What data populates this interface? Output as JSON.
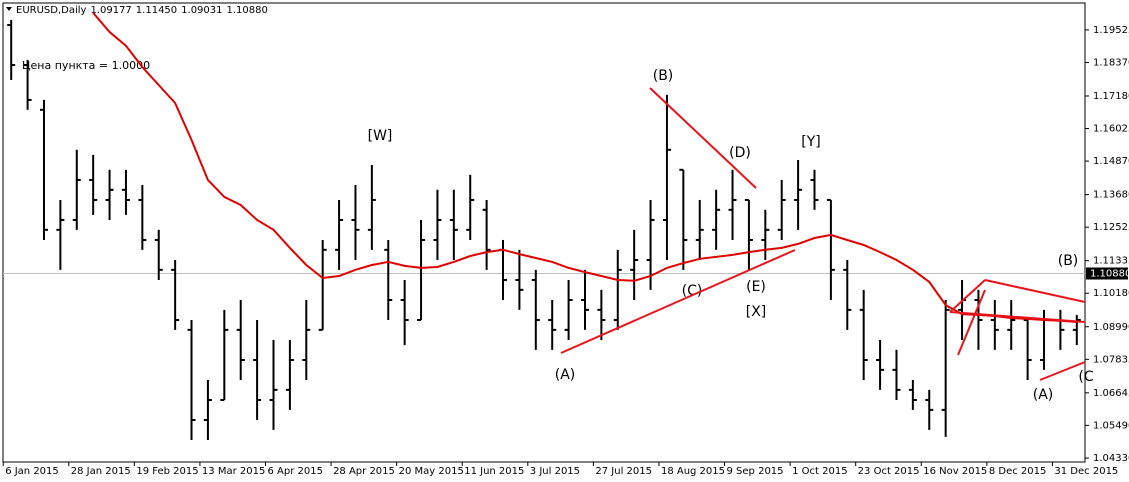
{
  "header": {
    "symbol": "EURUSD,Daily",
    "ohlc": [
      1.09177,
      {
        "value": 1.1145,
        "label": "1.11450"
      },
      1.09031,
      {
        "value": 1.1088,
        "label": "1.10880"
      }
    ],
    "info_text": "Цена пункта = 1.0000"
  },
  "chart_data": {
    "type": "ohlc",
    "color": "#000000",
    "open": [
      1.197,
      1.1828,
      1.1669,
      1.1243,
      1.1278,
      1.142,
      1.1349,
      1.1385,
      1.1349,
      1.1207,
      1.1101,
      1.0888,
      1.0568,
      1.0639,
      1.0888,
      1.0781,
      1.0639,
      1.0675,
      1.0781,
      1.0888,
      1.1172,
      1.1278,
      1.1243,
      1.1172,
      1.0994,
      1.0923,
      1.1207,
      1.1278,
      1.1243,
      1.1314,
      1.1172,
      1.1065,
      1.1065,
      1.0923,
      1.0888,
      1.0994,
      1.0959,
      1.0923,
      1.1101,
      1.1136,
      1.1278,
      1.1456,
      1.1207,
      1.1243,
      1.1314,
      1.1349,
      1.1207,
      1.1243,
      1.1349,
      1.142,
      1.1349,
      1.1101,
      1.0959,
      1.0781,
      1.0746,
      1.0675,
      1.0639,
      1.0604,
      1.0959,
      1.0994,
      1.0923,
      1.0888,
      1.0923,
      1.0781,
      1.0923,
      1.0888
    ],
    "high": [
      1.1988,
      1.1846,
      1.1704,
      1.1349,
      1.1527,
      1.1509,
      1.1456,
      1.1456,
      1.1402,
      1.1243,
      1.1136,
      1.0923,
      1.071,
      1.0959,
      1.0994,
      1.0923,
      1.0852,
      1.0852,
      1.0994,
      1.1207,
      1.1349,
      1.1402,
      1.1473,
      1.1207,
      1.1065,
      1.1278,
      1.1385,
      1.1385,
      1.1438,
      1.1349,
      1.1207,
      1.1172,
      1.1101,
      1.0994,
      1.1065,
      1.1101,
      1.103,
      1.1172,
      1.1243,
      1.1349,
      1.1722,
      1.1456,
      1.1349,
      1.1385,
      1.1456,
      1.1349,
      1.1314,
      1.142,
      1.1491,
      1.1456,
      1.1349,
      1.1136,
      1.103,
      1.0852,
      1.0817,
      1.071,
      1.0675,
      1.0994,
      1.1065,
      1.103,
      1.0994,
      1.0994,
      1.0923,
      1.0959,
      1.0959,
      1.0941
    ],
    "low": [
      1.1775,
      1.1669,
      1.1207,
      1.1101,
      1.1243,
      1.1296,
      1.1278,
      1.1296,
      1.1172,
      1.1065,
      1.0888,
      1.0497,
      1.0497,
      1.0639,
      1.071,
      1.0568,
      1.0533,
      1.0604,
      1.071,
      1.0888,
      1.1101,
      1.1136,
      1.1172,
      1.0923,
      1.0834,
      1.0923,
      1.1136,
      1.1136,
      1.1207,
      1.1101,
      1.0994,
      1.0959,
      1.0817,
      1.0817,
      1.0852,
      1.0888,
      1.0852,
      1.0888,
      1.0994,
      1.103,
      1.1136,
      1.1101,
      1.1136,
      1.1172,
      1.1207,
      1.1101,
      1.1136,
      1.1207,
      1.1243,
      1.1314,
      1.0994,
      1.0888,
      1.071,
      1.0675,
      1.0639,
      1.0604,
      1.0533,
      1.0508,
      1.0852,
      1.0817,
      1.0817,
      1.0817,
      1.071,
      1.0746,
      1.0817,
      1.0834
    ],
    "close": [
      1.1828,
      1.1704,
      1.1243,
      1.1278,
      1.142,
      1.1349,
      1.1385,
      1.1349,
      1.1207,
      1.1101,
      1.0923,
      1.0568,
      1.0639,
      1.0888,
      1.0781,
      1.0639,
      1.0675,
      1.0781,
      1.0888,
      1.1172,
      1.1278,
      1.1243,
      1.1349,
      1.0994,
      1.0923,
      1.1207,
      1.1278,
      1.1243,
      1.1349,
      1.1172,
      1.1065,
      1.103,
      1.0923,
      1.0888,
      1.0994,
      1.0959,
      1.0923,
      1.1101,
      1.1136,
      1.1278,
      1.1527,
      1.1207,
      1.1243,
      1.1314,
      1.1349,
      1.1207,
      1.1243,
      1.1349,
      1.1385,
      1.1349,
      1.1101,
      1.0959,
      1.0781,
      1.0746,
      1.0675,
      1.0639,
      1.0604,
      1.0959,
      1.0994,
      1.0923,
      1.0888,
      1.0923,
      1.0781,
      1.0923,
      1.0888,
      1.0923
    ],
    "moving_average": {
      "color": "#e00000",
      "values": [
        null,
        null,
        null,
        null,
        null,
        1.2013,
        1.1945,
        1.1896,
        1.1821,
        1.1757,
        1.1693,
        1.1562,
        1.142,
        1.136,
        1.1331,
        1.1278,
        1.1243,
        1.1179,
        1.1118,
        1.1072,
        1.1079,
        1.1101,
        1.1118,
        1.1129,
        1.1115,
        1.1108,
        1.1111,
        1.1129,
        1.115,
        1.1164,
        1.1172,
        1.1157,
        1.1143,
        1.1129,
        1.1108,
        1.1093,
        1.1079,
        1.1065,
        1.1062,
        1.1079,
        1.1108,
        1.1125,
        1.114,
        1.1147,
        1.1154,
        1.1164,
        1.1172,
        1.1179,
        1.1193,
        1.1214,
        1.1225,
        1.1207,
        1.1189,
        1.1164,
        1.1136,
        1.1101,
        1.1058,
        1.0976,
        1.0944,
        1.0941,
        1.0937,
        1.093,
        1.0927,
        1.0923,
        1.092,
        1.0916
      ]
    },
    "xlim": [
      -0.5,
      65.5
    ],
    "xticks": [
      {
        "value": 0,
        "label": "6 Jan 2015"
      },
      {
        "value": 4,
        "label": "28 Jan 2015"
      },
      {
        "value": 8,
        "label": "19 Feb 2015"
      },
      {
        "value": 12,
        "label": "13 Mar 2015"
      },
      {
        "value": 16,
        "label": "6 Apr 2015"
      },
      {
        "value": 20,
        "label": "28 Apr 2015"
      },
      {
        "value": 24,
        "label": "20 May 2015"
      },
      {
        "value": 28,
        "label": "11 Jun 2015"
      },
      {
        "value": 32,
        "label": "3 Jul 2015"
      },
      {
        "value": 36,
        "label": "27 Jul 2015"
      },
      {
        "value": 40,
        "label": "18 Aug 2015"
      },
      {
        "value": 44,
        "label": "9 Sep 2015"
      },
      {
        "value": 48,
        "label": "1 Oct 2015"
      },
      {
        "value": 52,
        "label": "23 Oct 2015"
      },
      {
        "value": 56,
        "label": "16 Nov 2015"
      },
      {
        "value": 60,
        "label": "8 Dec 2015"
      },
      {
        "value": 64,
        "label": "31 Dec 2015"
      }
    ],
    "ylim": [
      1.0419,
      1.2048
    ],
    "yticks": [
      1.19525,
      {
        "value": 1.1837,
        "label": "1.18370"
      },
      {
        "value": 1.1718,
        "label": "1.17180"
      },
      1.16025,
      {
        "value": 1.1487,
        "label": "1.14870"
      },
      {
        "value": 1.1368,
        "label": "1.13680"
      },
      1.12525,
      1.11335,
      {
        "value": 1.1018,
        "label": "1.10180"
      },
      {
        "value": 1.0899,
        "label": "1.08990"
      },
      1.07835,
      1.06645,
      {
        "value": 1.0549,
        "label": "1.05490"
      },
      {
        "value": 1.0433,
        "label": "1.04330"
      }
    ],
    "current_price": {
      "value": 1.1088,
      "label": "1.10880"
    },
    "annotations": [
      "(B)",
      "[W]",
      "(D)",
      "[Y]",
      "(C)",
      "(E)",
      "[X]",
      "(A)",
      "(B)",
      "(A)",
      "(C"
    ]
  }
}
